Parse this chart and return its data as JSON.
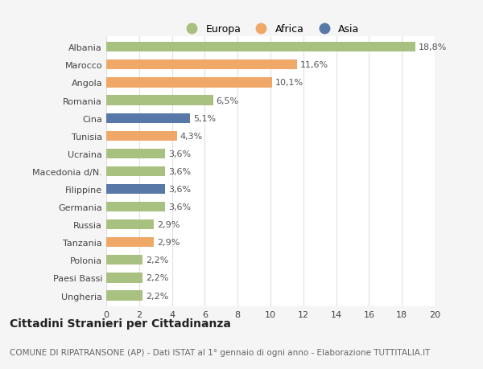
{
  "categories": [
    "Albania",
    "Marocco",
    "Angola",
    "Romania",
    "Cina",
    "Tunisia",
    "Ucraina",
    "Macedonia d/N.",
    "Filippine",
    "Germania",
    "Russia",
    "Tanzania",
    "Polonia",
    "Paesi Bassi",
    "Ungheria"
  ],
  "values": [
    18.8,
    11.6,
    10.1,
    6.5,
    5.1,
    4.3,
    3.6,
    3.6,
    3.6,
    3.6,
    2.9,
    2.9,
    2.2,
    2.2,
    2.2
  ],
  "labels": [
    "18,8%",
    "11,6%",
    "10,1%",
    "6,5%",
    "5,1%",
    "4,3%",
    "3,6%",
    "3,6%",
    "3,6%",
    "3,6%",
    "2,9%",
    "2,9%",
    "2,2%",
    "2,2%",
    "2,2%"
  ],
  "colors": [
    "#a8c080",
    "#f0a868",
    "#f0a868",
    "#a8c080",
    "#5878a8",
    "#f0a868",
    "#a8c080",
    "#a8c080",
    "#5878a8",
    "#a8c080",
    "#a8c080",
    "#f0a868",
    "#a8c080",
    "#a8c080",
    "#a8c080"
  ],
  "legend": [
    {
      "label": "Europa",
      "color": "#a8c080"
    },
    {
      "label": "Africa",
      "color": "#f0a868"
    },
    {
      "label": "Asia",
      "color": "#5878a8"
    }
  ],
  "xlim": [
    0,
    20
  ],
  "xticks": [
    0,
    2,
    4,
    6,
    8,
    10,
    12,
    14,
    16,
    18,
    20
  ],
  "title": "Cittadini Stranieri per Cittadinanza",
  "subtitle": "COMUNE DI RIPATRANSONE (AP) - Dati ISTAT al 1° gennaio di ogni anno - Elaborazione TUTTITALIA.IT",
  "background_color": "#f5f5f5",
  "plot_bg_color": "#ffffff",
  "grid_color": "#e0e0e0",
  "bar_height": 0.55,
  "label_fontsize": 8,
  "tick_fontsize": 8,
  "title_fontsize": 10,
  "subtitle_fontsize": 7.5
}
